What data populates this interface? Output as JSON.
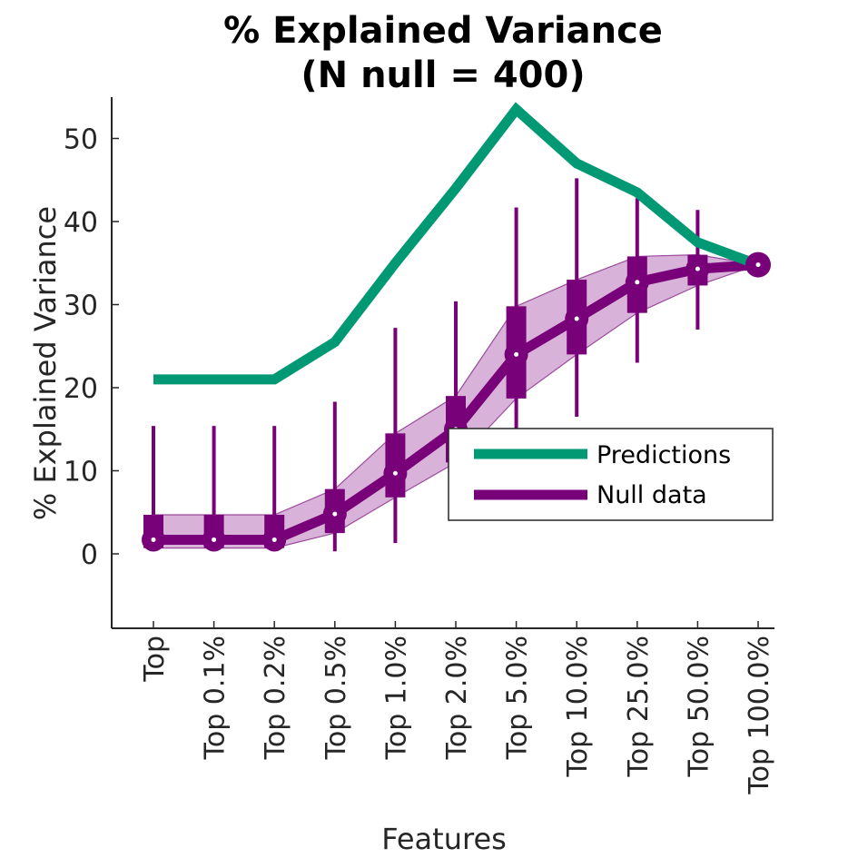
{
  "chart_data": {
    "type": "line",
    "title_line1": "% Explained Variance",
    "title_line2": "(N null = 400)",
    "xlabel": "Features",
    "ylabel": "% Explained Variance",
    "ylim": [
      -9,
      55
    ],
    "yticks": [
      "0",
      "10",
      "20",
      "30",
      "40",
      "50"
    ],
    "ytick_values": [
      0,
      10,
      20,
      30,
      40,
      50
    ],
    "categories": [
      "Top",
      "Top 0.1%",
      "Top 0.2%",
      "Top 0.5%",
      "Top 1.0%",
      "Top 2.0%",
      "Top 5.0%",
      "Top 10.0%",
      "Top 25.0%",
      "Top 50.0%",
      "Top 100.0%"
    ],
    "legend": {
      "position": "right",
      "entries": [
        "Predictions",
        "Null data"
      ]
    },
    "series": [
      {
        "name": "Predictions",
        "color": "#009973",
        "values": [
          21,
          21,
          21,
          25.5,
          35,
          44,
          53.5,
          47,
          43.5,
          37.5,
          34.8
        ]
      },
      {
        "name": "Null data",
        "color": "#780078",
        "median": [
          1.7,
          1.7,
          1.7,
          4.8,
          9.7,
          15,
          24,
          28.3,
          32.7,
          34.3,
          34.8
        ],
        "q1": [
          0.7,
          0.7,
          0.7,
          2.5,
          6.8,
          11,
          18.7,
          24,
          29,
          32.3,
          34.8
        ],
        "q3": [
          4.7,
          4.7,
          4.7,
          7.8,
          14.5,
          19,
          29.8,
          33,
          35.8,
          36,
          34.8
        ],
        "min": [
          0.5,
          0.5,
          0.5,
          0.3,
          1.3,
          10,
          15,
          16.5,
          23,
          27,
          34.8
        ],
        "max": [
          15.4,
          15.4,
          15.4,
          18.3,
          27.2,
          30.4,
          41.7,
          45.2,
          42.8,
          41.4,
          34.8
        ]
      }
    ],
    "band_color": "#d8b2d8",
    "band_edge_color": "#9c4a9c"
  }
}
